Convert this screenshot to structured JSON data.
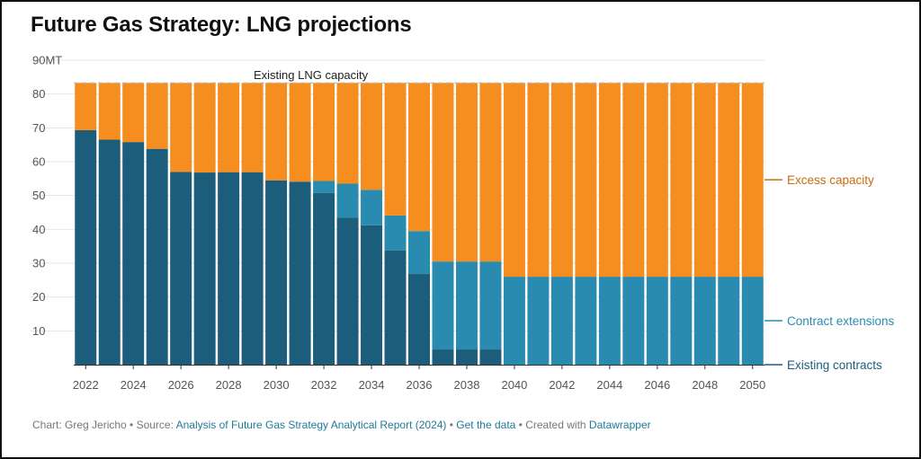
{
  "title": "Future Gas Strategy: LNG projections",
  "footer": {
    "prefix": "Chart: Greg Jericho • Source: ",
    "source_link": "Analysis of Future Gas Strategy Analytical Report (2024)",
    "sep1": " • ",
    "data_link": "Get the data",
    "sep2": " • Created with ",
    "tool_link": "Datawrapper"
  },
  "colors": {
    "existing_contracts": "#1b5d7a",
    "contract_extensions": "#2a8bb0",
    "excess_capacity": "#f68d1f",
    "existing_contracts_label": "#1b5d7a",
    "contract_extensions_label": "#2a8bb0",
    "excess_capacity_label": "#c96d0e"
  },
  "chart_data": {
    "type": "bar",
    "stacked": true,
    "title": "Future Gas Strategy: LNG projections",
    "ylim": [
      0,
      90
    ],
    "yticks": [
      "10",
      "20",
      "30",
      "40",
      "50",
      "60",
      "70",
      "80",
      "90MT"
    ],
    "x": [
      2022,
      2023,
      2024,
      2025,
      2026,
      2027,
      2028,
      2029,
      2030,
      2031,
      2032,
      2033,
      2034,
      2035,
      2036,
      2037,
      2038,
      2039,
      2040,
      2041,
      2042,
      2043,
      2044,
      2045,
      2046,
      2047,
      2048,
      2049,
      2050
    ],
    "xtick_labels": [
      "2022",
      "2024",
      "2026",
      "2028",
      "2030",
      "2032",
      "2034",
      "2036",
      "2038",
      "2040",
      "2042",
      "2044",
      "2046",
      "2048",
      "2050"
    ],
    "series": [
      {
        "name": "Existing contracts",
        "values": [
          69.3,
          66.5,
          65.8,
          63.8,
          57,
          56.8,
          56.9,
          56.9,
          54.5,
          54.1,
          50.8,
          43.5,
          41.2,
          33.8,
          26.8,
          4.5,
          4.5,
          4.5,
          0,
          0,
          0,
          0,
          0,
          0,
          0,
          0,
          0,
          0,
          0
        ]
      },
      {
        "name": "Contract extensions",
        "values": [
          0,
          0,
          0,
          0,
          0,
          0,
          0,
          0,
          0,
          0,
          3.5,
          10,
          10.5,
          10.3,
          12.7,
          26,
          26,
          26,
          26,
          26,
          26,
          26,
          26,
          26,
          26,
          26,
          26,
          26,
          26
        ]
      },
      {
        "name": "Excess capacity",
        "values": [
          14,
          16.8,
          17.5,
          19.5,
          26.3,
          26.5,
          26.4,
          26.4,
          28.8,
          29.2,
          29,
          29.8,
          31.6,
          39.2,
          43.8,
          52.8,
          52.8,
          52.8,
          57.3,
          57.3,
          57.3,
          57.3,
          57.3,
          57.3,
          57.3,
          57.3,
          57.3,
          57.3,
          57.3
        ]
      }
    ],
    "annotations": [
      {
        "text": "Existing LNG capacity",
        "value": 83.3
      }
    ],
    "legend": "right, labels at series end"
  }
}
